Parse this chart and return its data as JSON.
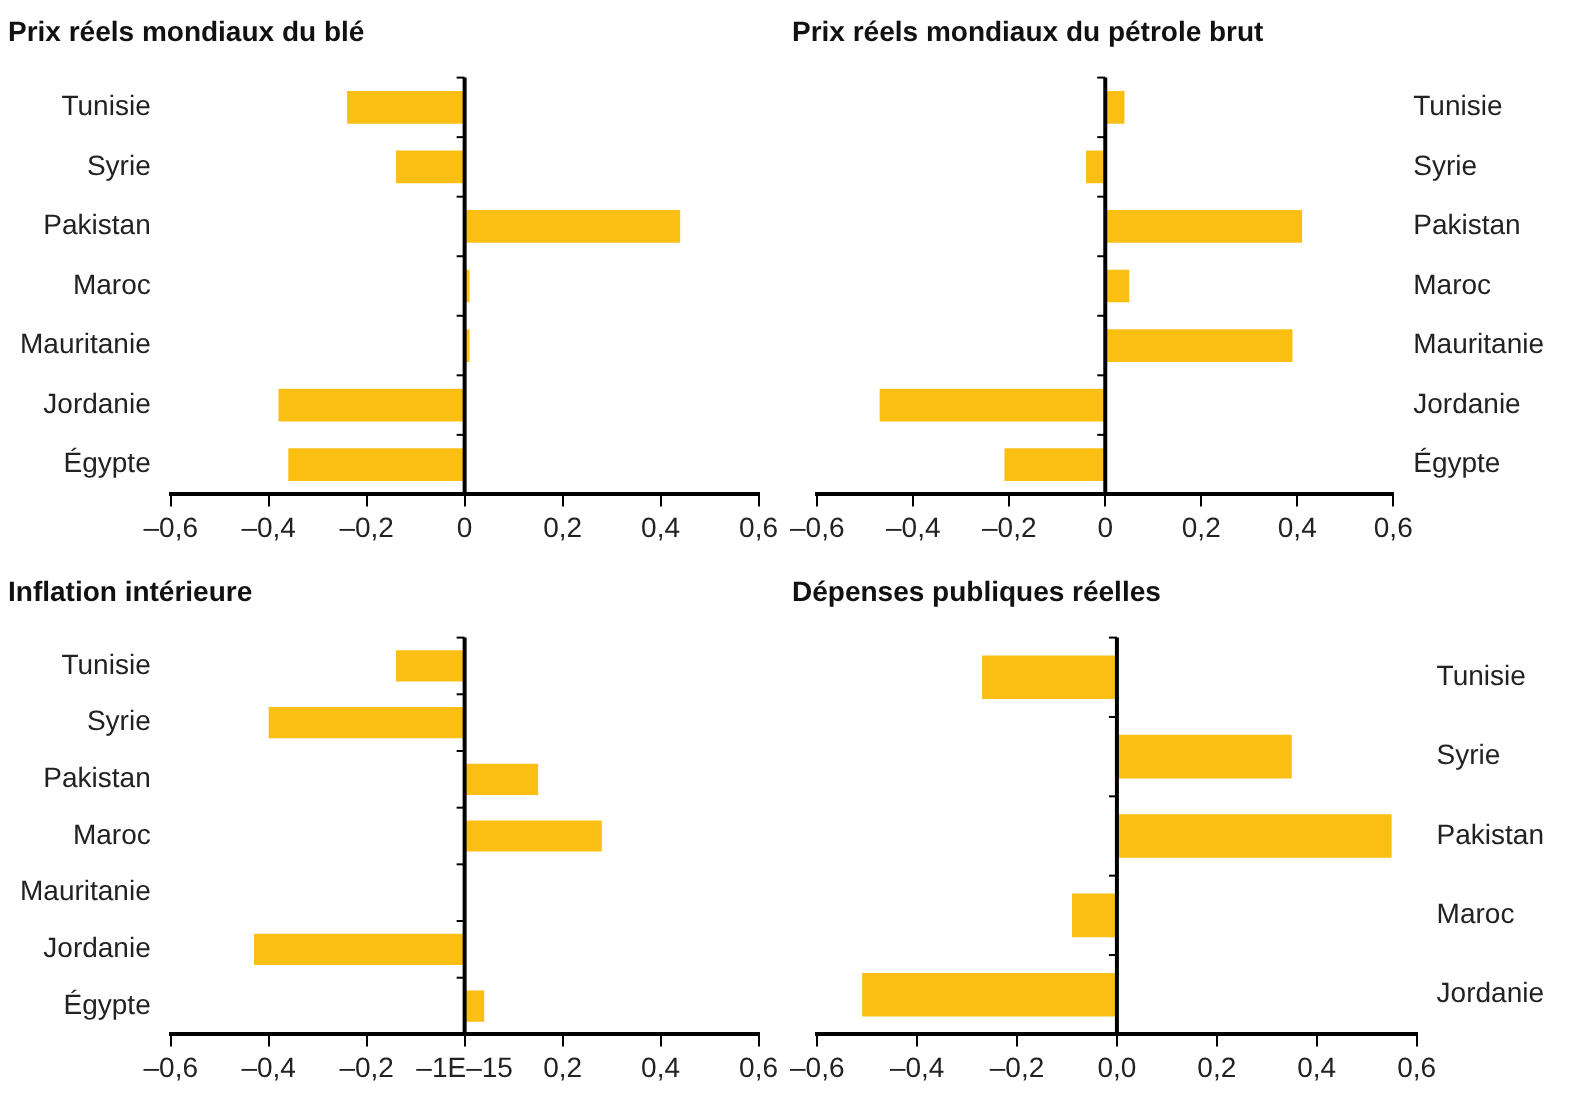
{
  "chart_data": [
    {
      "type": "bar",
      "orientation": "horizontal",
      "title": "Prix réels mondiaux du blé",
      "categories": [
        "Tunisie",
        "Syrie",
        "Pakistan",
        "Maroc",
        "Mauritanie",
        "Jordanie",
        "Égypte"
      ],
      "values": [
        -0.24,
        -0.14,
        0.44,
        0.01,
        0.01,
        -0.38,
        -0.36
      ],
      "color": "#fbbf14",
      "xlim": [
        -0.6,
        0.6
      ],
      "xticks": [
        {
          "value": -0.6,
          "label": "–0,6"
        },
        {
          "value": -0.4,
          "label": "–0,4"
        },
        {
          "value": -0.2,
          "label": "–0,2"
        },
        0,
        {
          "value": 0.2,
          "label": "0,2"
        },
        {
          "value": 0.4,
          "label": "0,4"
        },
        {
          "value": 0.6,
          "label": "0,6"
        }
      ],
      "legend": false
    },
    {
      "type": "bar",
      "orientation": "horizontal",
      "title": "Prix réels mondiaux du pétrole brut",
      "categories": [
        "Tunisie",
        "Syrie",
        "Pakistan",
        "Maroc",
        "Mauritanie",
        "Jordanie",
        "Égypte"
      ],
      "values": [
        0.04,
        -0.04,
        0.41,
        0.05,
        0.39,
        -0.47,
        -0.21
      ],
      "color": "#fbbf14",
      "xlim": [
        -0.6,
        0.6
      ],
      "xticks": [
        {
          "value": -0.6,
          "label": "–0,6"
        },
        {
          "value": -0.4,
          "label": "–0,4"
        },
        {
          "value": -0.2,
          "label": "–0,2"
        },
        0,
        {
          "value": 0.2,
          "label": "0,2"
        },
        {
          "value": 0.4,
          "label": "0,4"
        },
        {
          "value": 0.6,
          "label": "0,6"
        }
      ],
      "legend": false
    },
    {
      "type": "bar",
      "orientation": "horizontal",
      "title": "Inflation intérieure",
      "categories": [
        "Tunisie",
        "Syrie",
        "Pakistan",
        "Maroc",
        "Mauritanie",
        "Jordanie",
        "Égypte"
      ],
      "values": [
        -0.14,
        -0.4,
        0.15,
        0.28,
        0,
        -0.43,
        0.04
      ],
      "color": "#fbbf14",
      "xlim": [
        -0.6,
        0.6
      ],
      "xticks": [
        {
          "value": -0.6,
          "label": "–0,6"
        },
        {
          "value": -0.4,
          "label": "–0,4"
        },
        {
          "value": -0.2,
          "label": "–0,2"
        },
        {
          "value": 0,
          "label": "–1E–15"
        },
        {
          "value": 0.2,
          "label": "0,2"
        },
        {
          "value": 0.4,
          "label": "0,4"
        },
        {
          "value": 0.6,
          "label": "0,6"
        }
      ],
      "legend": false
    },
    {
      "type": "bar",
      "orientation": "horizontal",
      "title": "Dépenses publiques réelles",
      "categories": [
        "Tunisie",
        "Syrie",
        "Pakistan",
        "Maroc",
        "Jordanie"
      ],
      "values": [
        -0.27,
        0.35,
        0.55,
        -0.09,
        -0.51
      ],
      "color": "#fbbf14",
      "xlim": [
        -0.6,
        0.6
      ],
      "xticks": [
        {
          "value": -0.6,
          "label": "–0,6"
        },
        {
          "value": -0.4,
          "label": "–0,4"
        },
        {
          "value": -0.2,
          "label": "–0,2"
        },
        {
          "value": 0,
          "label": "0,0"
        },
        {
          "value": 0.2,
          "label": "0,2"
        },
        {
          "value": 0.4,
          "label": "0,4"
        },
        {
          "value": 0.6,
          "label": "0,6"
        }
      ],
      "legend": false
    }
  ]
}
